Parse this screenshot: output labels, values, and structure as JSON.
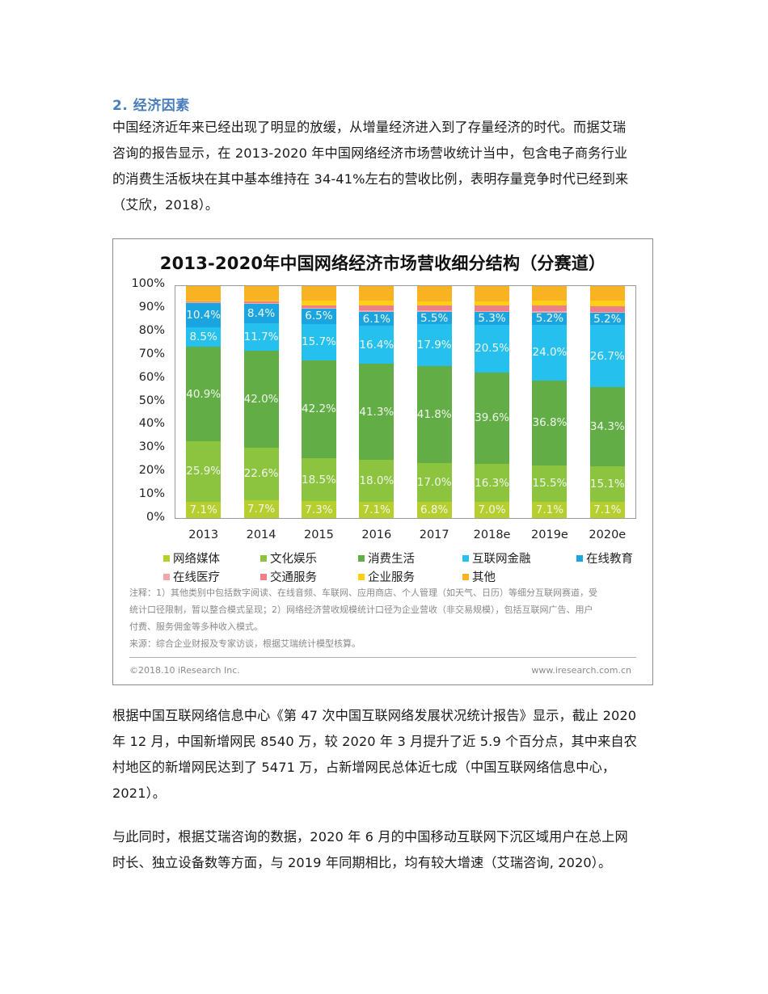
{
  "section": {
    "heading": "2. 经济因素"
  },
  "paragraphs": [
    {
      "lines": [
        "中国经济近年来已经出现了明显的放缓，从增量经济进入到了存量经济的时代。而据艾瑞",
        "咨询的报告显示，在 2013-2020 年中国网络经济市场营收统计当中，包含电子商务行业",
        "的消费生活板块在其中基本维持在 34-41%左右的营收比例，表明存量竞争时代已经到来",
        "（艾欣，2018）。"
      ]
    },
    {
      "lines": [
        "根据中国互联网络信息中心《第 47 次中国互联网络发展状况统计报告》显示，截止 2020",
        "年 12 月，中国新增网民 8540 万，较 2020 年 3 月提升了近 5.9 个百分点，其中来自农",
        "村地区的新增网民达到了 5471 万，占新增网民总体近七成（中国互联网络信息中心，",
        "2021）。"
      ]
    },
    {
      "lines": [
        "与此同时，根据艾瑞咨询的数据，2020 年 6 月的中国移动互联网下沉区域用户在总上网",
        "时长、独立设备数等方面，与 2019 年同期相比，均有较大增速（艾瑞咨询, 2020）。"
      ]
    }
  ],
  "figure": {
    "notes": [
      "注释：1）其他类别中包括数字阅读、在线音频、车联网、应用商店、个人管理（如天气、日历）等细分互联网赛道，受",
      "统计口径限制，暂以整合模式呈现；2）网络经济营收规模统计口径为企业营收（非交易规模），包括互联网广告、用户",
      "付费、服务佣金等多种收入模式。",
      "来源：综合企业财报及专家访谈，根据艾瑞统计模型核算。"
    ],
    "copyright": "©2018.10 iResearch Inc.",
    "website": "www.iresearch.com.cn"
  },
  "chart_data": {
    "type": "bar",
    "stacked": true,
    "percent_stacked": true,
    "title": "2013-2020年中国网络经济市场营收细分结构（分赛道）",
    "xlabel": "",
    "ylabel": "",
    "ylim": [
      0,
      100
    ],
    "yticks": [
      "0%",
      "10%",
      "20%",
      "30%",
      "40%",
      "50%",
      "60%",
      "70%",
      "80%",
      "90%",
      "100%"
    ],
    "grid": false,
    "legend_position": "bottom",
    "categories": [
      "2013",
      "2014",
      "2015",
      "2016",
      "2017",
      "2018e",
      "2019e",
      "2020e"
    ],
    "series": [
      {
        "name": "网络媒体",
        "color": "#b7cf2e",
        "labeled": true,
        "values": [
          7.1,
          7.7,
          7.3,
          7.1,
          6.8,
          7.0,
          7.1,
          7.1
        ]
      },
      {
        "name": "文化娱乐",
        "color": "#8cc43f",
        "labeled": true,
        "values": [
          25.9,
          22.6,
          18.5,
          18.0,
          17.0,
          16.3,
          15.5,
          15.1
        ]
      },
      {
        "name": "消费生活",
        "color": "#62ad46",
        "labeled": true,
        "values": [
          40.9,
          42.0,
          42.2,
          41.3,
          41.8,
          39.6,
          36.8,
          34.3
        ]
      },
      {
        "name": "互联网金融",
        "color": "#26c0ee",
        "labeled": true,
        "values": [
          8.5,
          11.7,
          15.7,
          16.4,
          17.9,
          20.5,
          24.0,
          26.7
        ]
      },
      {
        "name": "在线教育",
        "color": "#1ba5e0",
        "labeled": true,
        "values": [
          10.4,
          8.4,
          6.5,
          6.1,
          5.5,
          5.3,
          5.2,
          5.2
        ]
      },
      {
        "name": "在线医疗",
        "color": "#f2a7ae",
        "labeled": false,
        "values": [
          0.3,
          0.4,
          0.5,
          0.5,
          0.5,
          0.5,
          0.5,
          0.5
        ]
      },
      {
        "name": "交通服务",
        "color": "#ec7f88",
        "labeled": false,
        "values": [
          0.4,
          0.8,
          1.0,
          2.2,
          2.0,
          2.3,
          2.4,
          2.4
        ]
      },
      {
        "name": "企业服务",
        "color": "#fdd017",
        "labeled": false,
        "values": [
          0.3,
          0.3,
          2.0,
          2.0,
          2.0,
          2.0,
          2.2,
          2.3
        ]
      },
      {
        "name": "其他",
        "color": "#f9b222",
        "labeled": false,
        "values": [
          6.2,
          6.1,
          6.3,
          6.4,
          6.5,
          6.5,
          6.3,
          6.4
        ]
      }
    ]
  }
}
